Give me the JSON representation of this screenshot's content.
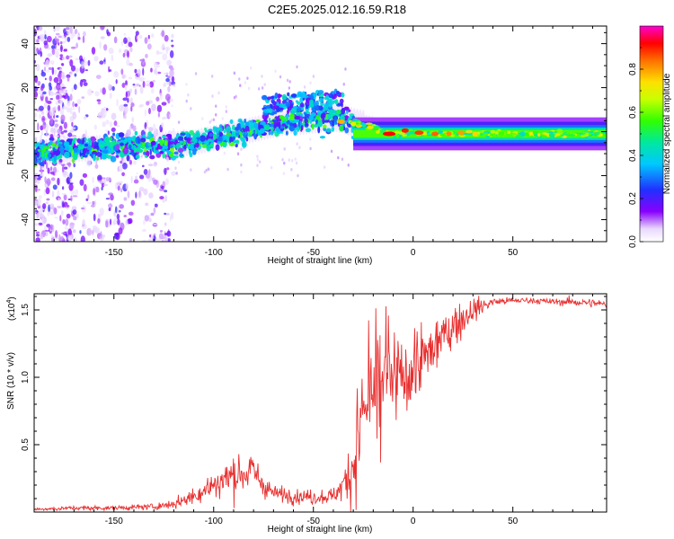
{
  "title": "C2E5.2025.012.16.59.R18",
  "chart_data": [
    {
      "type": "heatmap",
      "xlabel": "Height of straight line (km)",
      "ylabel": "Frequency (Hz)",
      "xlim": [
        -190,
        97
      ],
      "ylim": [
        -50,
        48
      ],
      "x_ticks": [
        -150,
        -100,
        -50,
        0,
        50
      ],
      "x_tick_labels": [
        "-150",
        "-100",
        "-50",
        "0",
        "50"
      ],
      "y_ticks": [
        -40,
        -20,
        0,
        20,
        40
      ],
      "y_tick_labels": [
        "-40",
        "-20",
        "0",
        "20",
        "40"
      ],
      "ridge": {
        "description": "frequency of main spectral band vs height",
        "x": [
          -190,
          -170,
          -150,
          -130,
          -110,
          -100,
          -90,
          -80,
          -70,
          -60,
          -50,
          -40,
          -35,
          -30,
          -20,
          -15,
          -10,
          -5,
          0,
          5,
          10,
          20,
          30,
          50,
          70,
          97
        ],
        "y": [
          -10,
          -8,
          -7,
          -6,
          -5,
          -3,
          -1,
          1,
          3,
          5,
          6,
          7,
          6,
          4,
          2,
          0,
          -1,
          -1,
          0,
          -1,
          -1,
          -1,
          -1,
          -1,
          -1,
          -1
        ]
      },
      "colorbar": {
        "label": "Normalized spectral amplitude",
        "range": [
          0,
          1
        ],
        "ticks": [
          0.0,
          0.2,
          0.4,
          0.6,
          0.8
        ],
        "tick_labels": [
          "0.0",
          "0.2",
          "0.4",
          "0.6",
          "0.8"
        ]
      }
    },
    {
      "type": "line",
      "xlabel": "Height of straight line (km)",
      "ylabel": "SNR (10 * v/v)",
      "multiplier_label": "(x10",
      "multiplier_exp": "4",
      "multiplier_close": ")",
      "xlim": [
        -190,
        97
      ],
      "ylim": [
        0,
        1.62
      ],
      "x_ticks": [
        -150,
        -100,
        -50,
        0,
        50
      ],
      "x_tick_labels": [
        "-150",
        "-100",
        "-50",
        "0",
        "50"
      ],
      "y_ticks": [
        0.5,
        1.0,
        1.5
      ],
      "y_tick_labels": [
        "0.5",
        "1.0",
        "1.5"
      ],
      "series": [
        {
          "name": "SNR",
          "color": "#e83030",
          "envelope": {
            "x": [
              -190,
              -170,
              -150,
              -130,
              -120,
              -110,
              -100,
              -90,
              -80,
              -75,
              -70,
              -60,
              -50,
              -40,
              -35,
              -30,
              -25,
              -20,
              -15,
              -10,
              -5,
              0,
              5,
              10,
              20,
              30,
              40,
              50,
              60,
              70,
              80,
              90,
              97
            ],
            "mean": [
              0.02,
              0.03,
              0.03,
              0.04,
              0.06,
              0.12,
              0.2,
              0.28,
              0.3,
              0.2,
              0.14,
              0.12,
              0.11,
              0.12,
              0.2,
              0.35,
              0.75,
              0.85,
              0.9,
              0.95,
              1.0,
              1.05,
              1.12,
              1.22,
              1.38,
              1.5,
              1.56,
              1.57,
              1.57,
              1.56,
              1.56,
              1.55,
              1.54
            ],
            "noise": [
              0.01,
              0.015,
              0.015,
              0.02,
              0.03,
              0.06,
              0.1,
              0.14,
              0.14,
              0.08,
              0.05,
              0.05,
              0.05,
              0.05,
              0.1,
              0.25,
              0.35,
              0.4,
              0.45,
              0.4,
              0.3,
              0.25,
              0.22,
              0.2,
              0.15,
              0.08,
              0.03,
              0.02,
              0.02,
              0.02,
              0.03,
              0.03,
              0.03
            ]
          }
        }
      ]
    }
  ]
}
